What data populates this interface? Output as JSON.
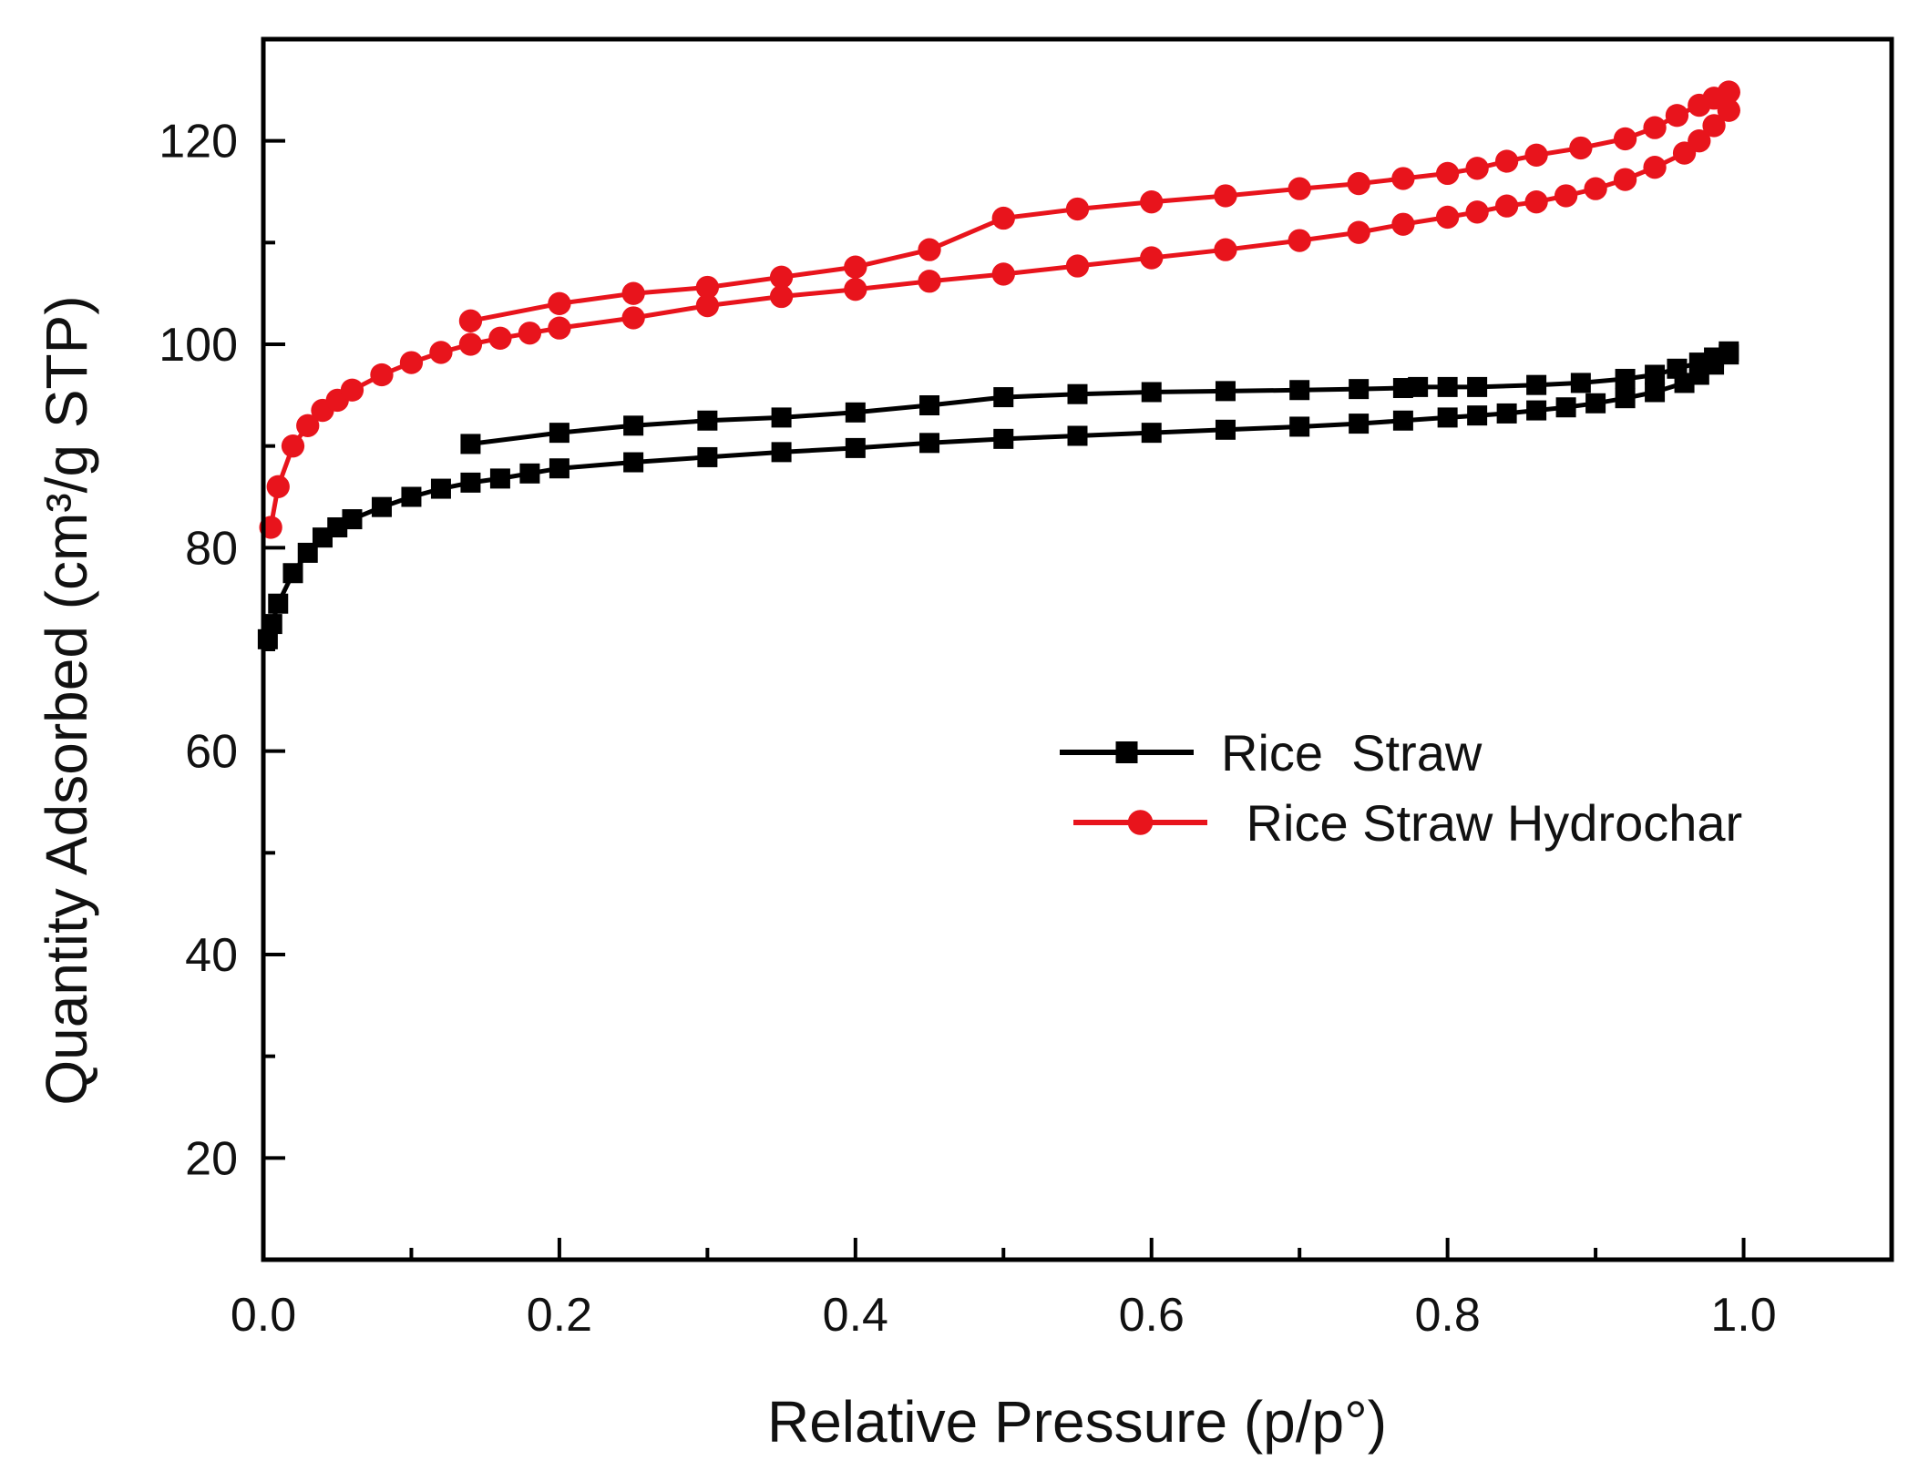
{
  "chart_data": {
    "type": "line",
    "title": "",
    "xlabel": "Relative Pressure (p/p°)",
    "ylabel": "Quantity Adsorbed (cm³/g STP)",
    "xlim": [
      0.0,
      1.1
    ],
    "ylim": [
      10,
      130
    ],
    "xticks": [
      0.0,
      0.2,
      0.4,
      0.6,
      0.8,
      1.0
    ],
    "xtick_labels": [
      "0.0",
      "0.2",
      "0.4",
      "0.6",
      "0.8",
      "1.0"
    ],
    "yticks": [
      20,
      40,
      60,
      80,
      100,
      120
    ],
    "ytick_labels": [
      "20",
      "40",
      "60",
      "80",
      "100",
      "120"
    ],
    "grid": false,
    "legend_position": "center-right",
    "series": [
      {
        "name": "Rice  Straw",
        "color": "#000000",
        "marker": "square",
        "adsorption": {
          "x": [
            0.003,
            0.006,
            0.01,
            0.02,
            0.03,
            0.04,
            0.05,
            0.06,
            0.08,
            0.1,
            0.12,
            0.14,
            0.16,
            0.18,
            0.2,
            0.25,
            0.3,
            0.35,
            0.4,
            0.45,
            0.5,
            0.55,
            0.6,
            0.65,
            0.7,
            0.74,
            0.77,
            0.8,
            0.82,
            0.84,
            0.86,
            0.88,
            0.9,
            0.92,
            0.94,
            0.96,
            0.97,
            0.98,
            0.99
          ],
          "y": [
            71.0,
            72.5,
            74.5,
            77.5,
            79.5,
            81.0,
            82.0,
            82.8,
            84.0,
            85.0,
            85.8,
            86.4,
            86.8,
            87.3,
            87.8,
            88.4,
            88.9,
            89.4,
            89.8,
            90.3,
            90.7,
            91.0,
            91.3,
            91.6,
            91.9,
            92.2,
            92.5,
            92.8,
            93.0,
            93.2,
            93.5,
            93.8,
            94.2,
            94.7,
            95.3,
            96.2,
            97.0,
            98.0,
            99.0
          ]
        },
        "desorption": {
          "x": [
            0.99,
            0.98,
            0.97,
            0.955,
            0.94,
            0.92,
            0.89,
            0.86,
            0.82,
            0.8,
            0.78,
            0.77,
            0.74,
            0.7,
            0.65,
            0.6,
            0.55,
            0.5,
            0.45,
            0.4,
            0.35,
            0.3,
            0.25,
            0.2,
            0.14
          ],
          "y": [
            99.3,
            98.7,
            98.2,
            97.6,
            97.0,
            96.6,
            96.2,
            96.0,
            95.8,
            95.8,
            95.8,
            95.7,
            95.6,
            95.5,
            95.4,
            95.3,
            95.1,
            94.8,
            94.0,
            93.3,
            92.8,
            92.5,
            92.0,
            91.3,
            90.2
          ]
        }
      },
      {
        "name": " Rice Straw Hydrochar",
        "color": "#e8141c",
        "marker": "circle",
        "adsorption": {
          "x": [
            0.005,
            0.01,
            0.02,
            0.03,
            0.04,
            0.05,
            0.06,
            0.08,
            0.1,
            0.12,
            0.14,
            0.16,
            0.18,
            0.2,
            0.25,
            0.3,
            0.35,
            0.4,
            0.45,
            0.5,
            0.55,
            0.6,
            0.65,
            0.7,
            0.74,
            0.77,
            0.8,
            0.82,
            0.84,
            0.86,
            0.88,
            0.9,
            0.92,
            0.94,
            0.96,
            0.97,
            0.98,
            0.99
          ],
          "y": [
            82.0,
            86.0,
            90.0,
            92.0,
            93.5,
            94.5,
            95.5,
            97.0,
            98.2,
            99.2,
            100.0,
            100.6,
            101.1,
            101.6,
            102.6,
            103.8,
            104.7,
            105.4,
            106.2,
            106.9,
            107.7,
            108.5,
            109.3,
            110.2,
            111.0,
            111.8,
            112.5,
            113.0,
            113.6,
            114.0,
            114.6,
            115.3,
            116.2,
            117.4,
            118.8,
            120.0,
            121.5,
            123.0
          ]
        },
        "desorption": {
          "x": [
            0.99,
            0.98,
            0.97,
            0.955,
            0.94,
            0.92,
            0.89,
            0.86,
            0.84,
            0.82,
            0.8,
            0.77,
            0.74,
            0.7,
            0.65,
            0.6,
            0.55,
            0.5,
            0.45,
            0.4,
            0.35,
            0.3,
            0.25,
            0.2,
            0.14
          ],
          "y": [
            124.8,
            124.2,
            123.5,
            122.5,
            121.3,
            120.2,
            119.3,
            118.6,
            118.0,
            117.3,
            116.8,
            116.3,
            115.8,
            115.3,
            114.6,
            114.0,
            113.3,
            112.4,
            109.3,
            107.6,
            106.6,
            105.6,
            105.0,
            104.0,
            102.3
          ]
        }
      }
    ]
  }
}
